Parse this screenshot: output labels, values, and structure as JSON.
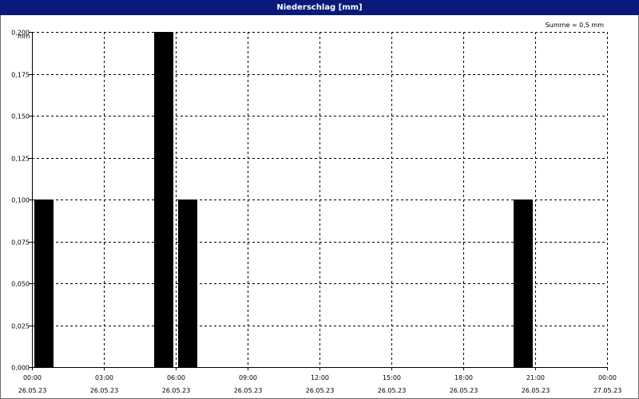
{
  "window": {
    "title": "Niederschlag [mm]"
  },
  "summary": "Summe = 0,5 mm",
  "chart_data": {
    "type": "bar",
    "title": "Niederschlag [mm]",
    "ylabel": "mm",
    "xlabel": "",
    "ylim": [
      0,
      0.2
    ],
    "y_ticks": [
      "0,000",
      "0,025",
      "0,050",
      "0,075",
      "0,100",
      "0,125",
      "0,150",
      "0,175",
      "0,200"
    ],
    "x_ticks": [
      {
        "time": "00:00",
        "date": "26.05.23"
      },
      {
        "time": "03:00",
        "date": "26.05.23"
      },
      {
        "time": "06:00",
        "date": "26.05.23"
      },
      {
        "time": "09:00",
        "date": "26.05.23"
      },
      {
        "time": "12:00",
        "date": "26.05.23"
      },
      {
        "time": "15:00",
        "date": "26.05.23"
      },
      {
        "time": "18:00",
        "date": "26.05.23"
      },
      {
        "time": "21:00",
        "date": "26.05.23"
      },
      {
        "time": "00:00",
        "date": "27.05.23"
      }
    ],
    "xlim": [
      "26.05.23 00:00",
      "27.05.23 00:00"
    ],
    "bars": [
      {
        "start": "26.05.23 00:00",
        "end": "26.05.23 01:00",
        "value": 0.1
      },
      {
        "start": "26.05.23 05:00",
        "end": "26.05.23 06:00",
        "value": 0.2
      },
      {
        "start": "26.05.23 06:00",
        "end": "26.05.23 07:00",
        "value": 0.1
      },
      {
        "start": "26.05.23 20:00",
        "end": "26.05.23 21:00",
        "value": 0.1
      }
    ],
    "grid": true,
    "colors": {
      "bar": "#000000",
      "grid": "#000000",
      "title_bar": "#0a1a7a"
    }
  }
}
